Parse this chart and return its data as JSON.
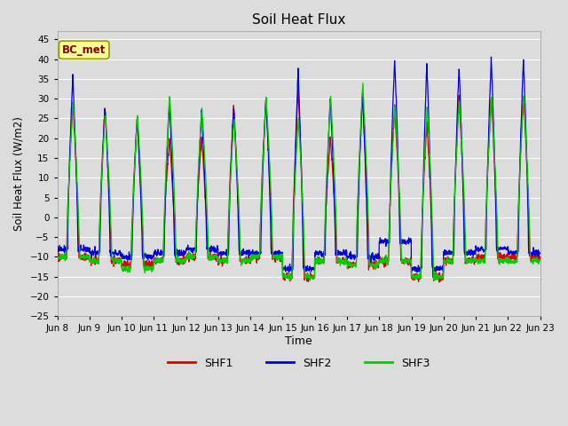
{
  "title": "Soil Heat Flux",
  "ylabel": "Soil Heat Flux (W/m2)",
  "xlabel": "Time",
  "ylim": [
    -25,
    47
  ],
  "yticks": [
    -25,
    -20,
    -15,
    -10,
    -5,
    0,
    5,
    10,
    15,
    20,
    25,
    30,
    35,
    40,
    45
  ],
  "bg_color": "#dcdcdc",
  "plot_bg": "#dcdcdc",
  "grid_color": "#ffffff",
  "series_colors": {
    "SHF1": "#dd0000",
    "SHF2": "#0000dd",
    "SHF3": "#00cc00"
  },
  "lw": 0.9,
  "n_days": 15,
  "points_per_day": 144,
  "annotation_box_color": "#ffff99",
  "annotation_box_edge": "#999900",
  "day_peaks_shf2": [
    36,
    28,
    25,
    29,
    27,
    28,
    30,
    37,
    30,
    31,
    40,
    39,
    38,
    40,
    40
  ],
  "day_peaks_shf1": [
    29,
    28,
    25,
    20,
    20,
    28,
    30,
    32,
    20,
    31,
    28,
    24,
    30,
    30,
    31
  ],
  "day_peaks_shf3": [
    29,
    26,
    26,
    31,
    28,
    25,
    30,
    25,
    31,
    34,
    28,
    28,
    30,
    31,
    31
  ],
  "night_shf1": [
    -10,
    -11,
    -12,
    -11,
    -10,
    -11,
    -10,
    -15,
    -11,
    -12,
    -11,
    -15,
    -11,
    -10,
    -10
  ],
  "night_shf2": [
    -8,
    -9,
    -10,
    -9,
    -8,
    -9,
    -9,
    -13,
    -9,
    -10,
    -6,
    -13,
    -9,
    -8,
    -9
  ],
  "night_shf3": [
    -10,
    -11,
    -13,
    -11,
    -10,
    -11,
    -10,
    -15,
    -11,
    -12,
    -11,
    -15,
    -11,
    -11,
    -11
  ]
}
